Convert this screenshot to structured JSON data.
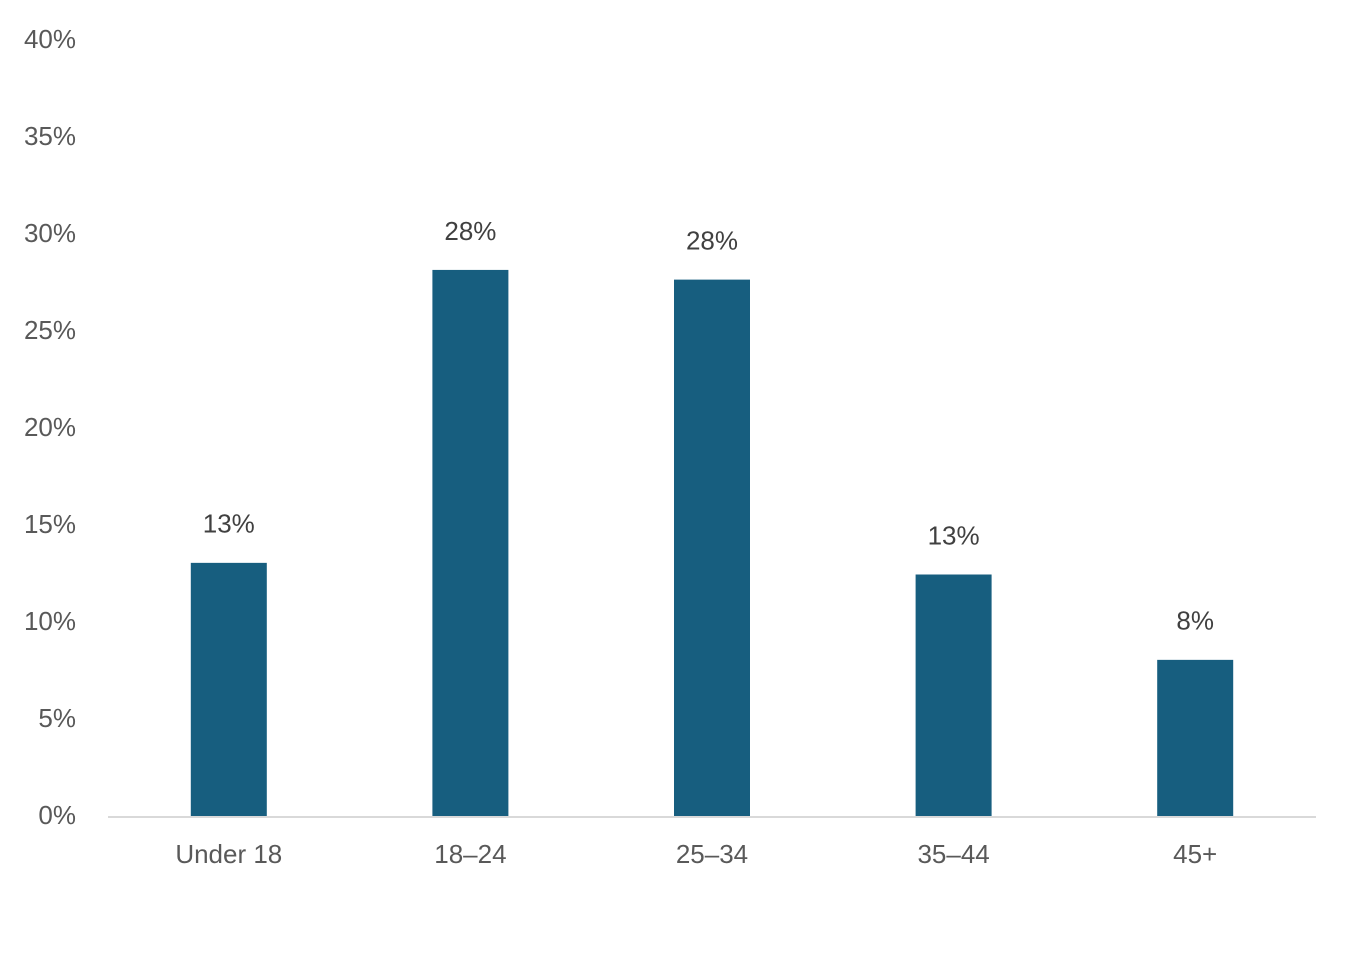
{
  "chart_data": {
    "type": "bar",
    "categories": [
      "Under 18",
      "18–24",
      "25–34",
      "35–44",
      "45+"
    ],
    "values": [
      13.1,
      28.2,
      27.7,
      12.5,
      8.1
    ],
    "value_labels": [
      "13%",
      "28%",
      "28%",
      "13%",
      "8%"
    ],
    "color": "#175e7f",
    "ylim": [
      0,
      40
    ],
    "yticks": [
      {
        "value": 0,
        "label": "0%"
      },
      {
        "value": 5,
        "label": "5%"
      },
      {
        "value": 10,
        "label": "10%"
      },
      {
        "value": 15,
        "label": "15%"
      },
      {
        "value": 20,
        "label": "20%"
      },
      {
        "value": 25,
        "label": "25%"
      },
      {
        "value": 30,
        "label": "30%"
      },
      {
        "value": 35,
        "label": "35%"
      },
      {
        "value": 40,
        "label": "40%"
      }
    ],
    "grid": false
  }
}
